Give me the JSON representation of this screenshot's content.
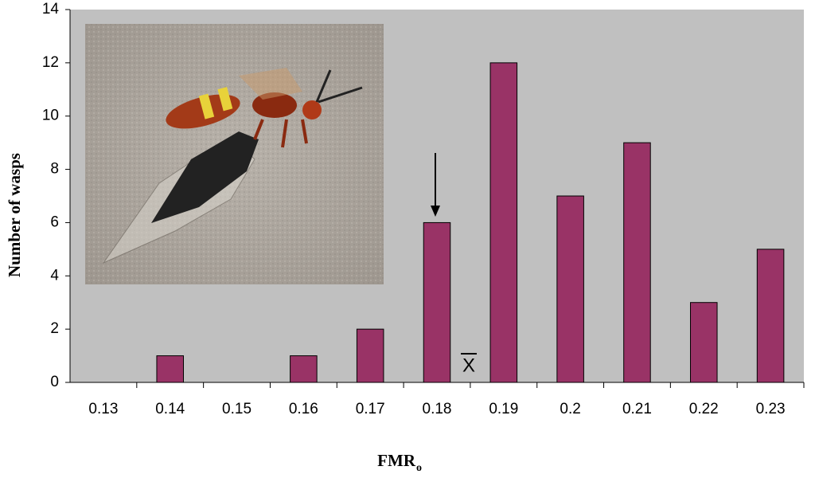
{
  "chart_data": {
    "type": "bar",
    "categories": [
      "0.13",
      "0.14",
      "0.15",
      "0.16",
      "0.17",
      "0.18",
      "0.19",
      "0.2",
      "0.21",
      "0.22",
      "0.23"
    ],
    "values": [
      0,
      1,
      0,
      1,
      2,
      6,
      12,
      7,
      9,
      3,
      5
    ],
    "color": "#993366",
    "ylim": [
      0,
      14
    ],
    "yticks": [
      0,
      2,
      4,
      6,
      8,
      10,
      12,
      14
    ],
    "y_label": "Number of wasps",
    "x_label": "FMR",
    "x_label_subscript": "o",
    "annotation": "X",
    "grid": false
  }
}
